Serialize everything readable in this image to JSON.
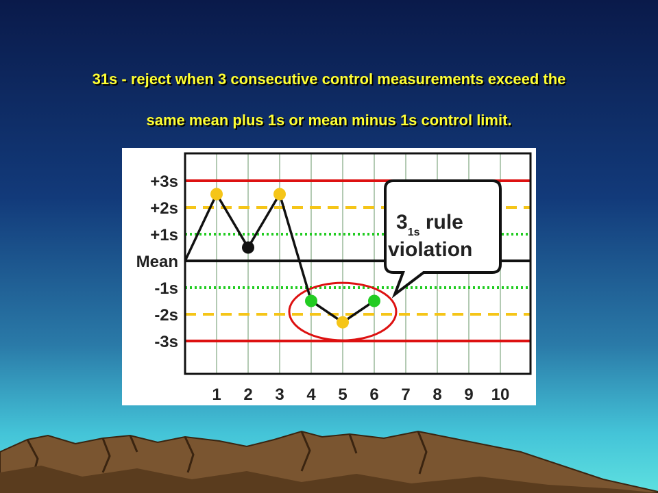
{
  "slide": {
    "title_line1": "31s - reject when 3 consecutive control measurements exceed the",
    "title_line2": "same mean plus 1s or mean minus 1s control limit."
  },
  "chart_data": {
    "type": "line",
    "title": "",
    "xlabel": "",
    "ylabel": "",
    "x": [
      1,
      2,
      3,
      4,
      5,
      6,
      7,
      8,
      9,
      10
    ],
    "x_tick_labels": [
      "1",
      "2",
      "3",
      "4",
      "5",
      "6",
      "7",
      "8",
      "9",
      "10"
    ],
    "y_tick_labels": [
      "+3s",
      "+2s",
      "+1s",
      "Mean",
      "-1s",
      "-2s",
      "-3s"
    ],
    "y_tick_values": [
      3,
      2,
      1,
      0,
      -1,
      -2,
      -3
    ],
    "ylim": [
      -3.3,
      3.3
    ],
    "grid": true,
    "series": [
      {
        "name": "",
        "x": [
          0,
          1,
          2,
          3,
          4,
          5,
          6
        ],
        "values": [
          0,
          2.5,
          0.5,
          2.5,
          -1.5,
          -2.3,
          -1.5
        ],
        "point_colors": [
          "",
          "#f5c518",
          "#111111",
          "#f5c518",
          "#22cc22",
          "#f5c518",
          "#22cc22"
        ]
      }
    ],
    "control_lines": [
      {
        "label": "+3s",
        "value": 3,
        "style": "solid",
        "color": "#dd1111"
      },
      {
        "label": "+2s",
        "value": 2,
        "style": "dashed",
        "color": "#f5c518"
      },
      {
        "label": "+1s",
        "value": 1,
        "style": "dotted",
        "color": "#22cc22"
      },
      {
        "label": "Mean",
        "value": 0,
        "style": "solid",
        "color": "#111111"
      },
      {
        "label": "-1s",
        "value": -1,
        "style": "dotted",
        "color": "#22cc22"
      },
      {
        "label": "-2s",
        "value": -2,
        "style": "dashed",
        "color": "#f5c518"
      },
      {
        "label": "-3s",
        "value": -3,
        "style": "solid",
        "color": "#dd1111"
      }
    ],
    "annotation": {
      "line1_main": "3",
      "line1_sub": "1s",
      "line1_rest": " rule",
      "line2": "violation",
      "highlight_points": [
        4,
        5,
        6
      ],
      "highlight_color": "#dd1111"
    }
  }
}
